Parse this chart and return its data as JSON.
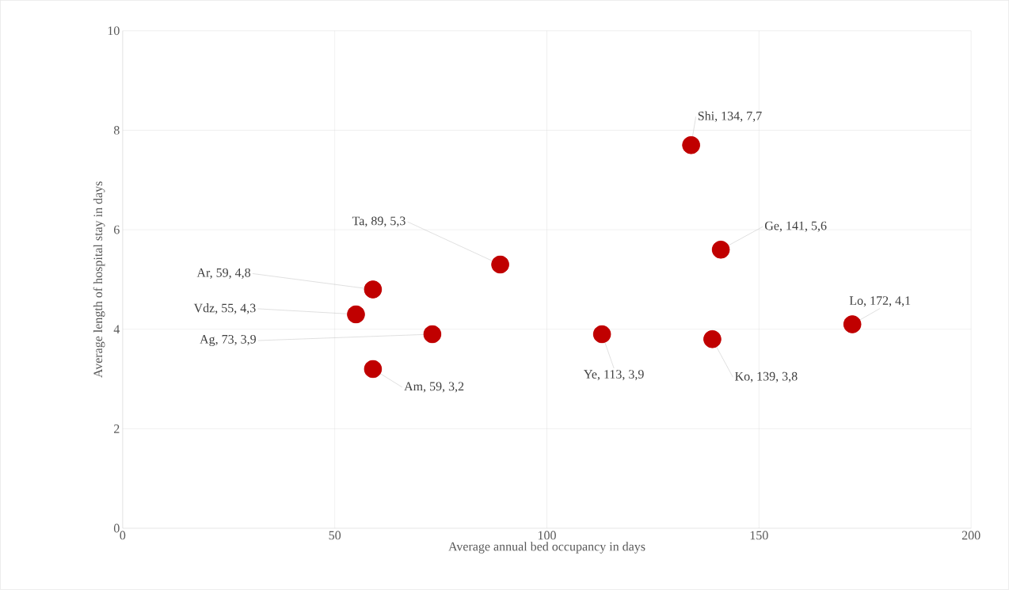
{
  "chart_data": {
    "type": "scatter",
    "xlabel": "Average annual bed occupancy in days",
    "ylabel": "Average length of hospital stay in days",
    "x": [
      134,
      141,
      89,
      59,
      55,
      73,
      59,
      113,
      139,
      172
    ],
    "values": [
      7.7,
      5.6,
      5.3,
      4.8,
      4.3,
      3.9,
      3.2,
      3.9,
      3.8,
      4.1
    ],
    "color": "#c00000",
    "marker": "circle",
    "xlim": [
      0,
      200
    ],
    "ylim": [
      0,
      10
    ],
    "xticks": [
      0,
      50,
      100,
      150,
      200
    ],
    "yticks": [
      0,
      2,
      4,
      6,
      8,
      10
    ],
    "grid": true,
    "annotations": [
      {
        "text": "Shi, 134, 7,7",
        "x": 134,
        "y": 7.7
      },
      {
        "text": "Ge, 141, 5,6",
        "x": 141,
        "y": 5.6
      },
      {
        "text": "Ta, 89, 5,3",
        "x": 89,
        "y": 5.3
      },
      {
        "text": "Ar, 59, 4,8",
        "x": 59,
        "y": 4.8
      },
      {
        "text": "Vdz, 55, 4,3",
        "x": 55,
        "y": 4.3
      },
      {
        "text": "Ag, 73, 3,9",
        "x": 73,
        "y": 3.9
      },
      {
        "text": "Am, 59, 3,2",
        "x": 59,
        "y": 3.2
      },
      {
        "text": "Ye, 113, 3,9",
        "x": 113,
        "y": 3.9
      },
      {
        "text": "Ko, 139, 3,8",
        "x": 139,
        "y": 3.8
      },
      {
        "text": "Lo, 172, 4,1",
        "x": 172,
        "y": 4.1
      }
    ]
  }
}
